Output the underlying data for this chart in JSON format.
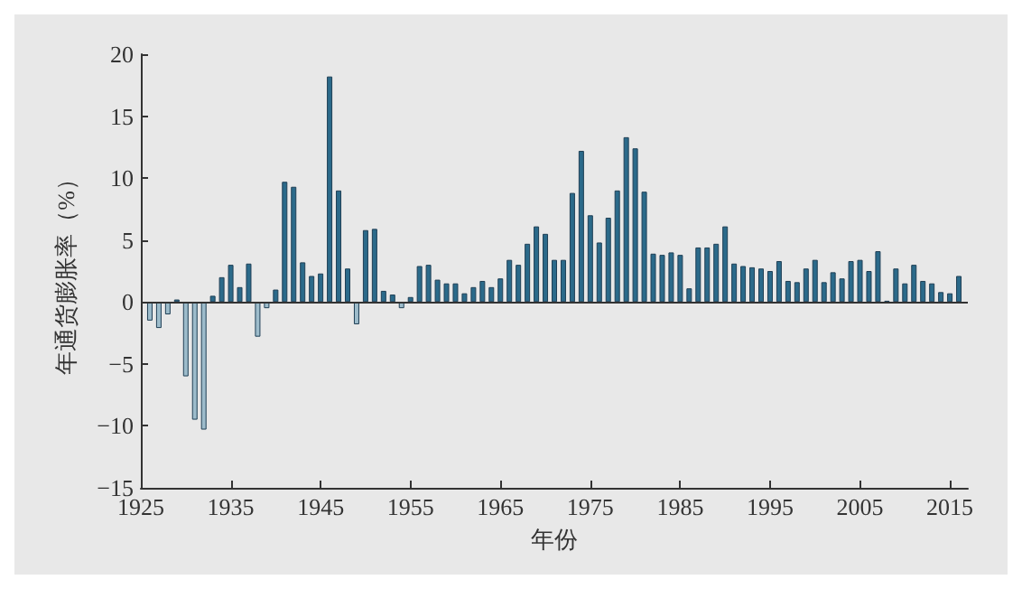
{
  "chart_data": {
    "type": "bar",
    "xlabel": "年份",
    "ylabel": "年通货膨胀率（%）",
    "x": [
      1926,
      1927,
      1928,
      1929,
      1930,
      1931,
      1932,
      1933,
      1934,
      1935,
      1936,
      1937,
      1938,
      1939,
      1940,
      1941,
      1942,
      1943,
      1944,
      1945,
      1946,
      1947,
      1948,
      1949,
      1950,
      1951,
      1952,
      1953,
      1954,
      1955,
      1956,
      1957,
      1958,
      1959,
      1960,
      1961,
      1962,
      1963,
      1964,
      1965,
      1966,
      1967,
      1968,
      1969,
      1970,
      1971,
      1972,
      1973,
      1974,
      1975,
      1976,
      1977,
      1978,
      1979,
      1980,
      1981,
      1982,
      1983,
      1984,
      1985,
      1986,
      1987,
      1988,
      1989,
      1990,
      1991,
      1992,
      1993,
      1994,
      1995,
      1996,
      1997,
      1998,
      1999,
      2000,
      2001,
      2002,
      2003,
      2004,
      2005,
      2006,
      2007,
      2008,
      2009,
      2010,
      2011,
      2012,
      2013,
      2014,
      2015,
      2016
    ],
    "values": [
      -1.5,
      -2.1,
      -1.0,
      0.2,
      -6.0,
      -9.5,
      -10.3,
      0.5,
      2.0,
      3.0,
      1.2,
      3.1,
      -2.8,
      -0.5,
      1.0,
      9.7,
      9.3,
      3.2,
      2.1,
      2.3,
      18.2,
      9.0,
      2.7,
      -1.8,
      5.8,
      5.9,
      0.9,
      0.6,
      -0.5,
      0.4,
      2.9,
      3.0,
      1.8,
      1.5,
      1.5,
      0.7,
      1.2,
      1.7,
      1.2,
      1.9,
      3.4,
      3.0,
      4.7,
      6.1,
      5.5,
      3.4,
      3.4,
      8.8,
      12.2,
      7.0,
      4.8,
      6.8,
      9.0,
      13.3,
      12.4,
      8.9,
      3.9,
      3.8,
      4.0,
      3.8,
      1.1,
      4.4,
      4.4,
      4.7,
      6.1,
      3.1,
      2.9,
      2.8,
      2.7,
      2.5,
      3.3,
      1.7,
      1.6,
      2.7,
      3.4,
      1.6,
      2.4,
      1.9,
      3.3,
      3.4,
      2.5,
      4.1,
      0.1,
      2.7,
      1.5,
      3.0,
      1.7,
      1.5,
      0.8,
      0.7,
      2.1
    ],
    "colors": [
      "#9dbccb",
      "#9dbccb",
      "#9dbccb",
      "#2b6a8a",
      "#9dbccb",
      "#9dbccb",
      "#9dbccb",
      "#2b6a8a",
      "#2b6a8a",
      "#2b6a8a",
      "#2b6a8a",
      "#2b6a8a",
      "#9dbccb",
      "#9dbccb",
      "#2b6a8a",
      "#2b6a8a",
      "#2b6a8a",
      "#2b6a8a",
      "#2b6a8a",
      "#2b6a8a",
      "#2b6a8a",
      "#2b6a8a",
      "#2b6a8a",
      "#9dbccb",
      "#2b6a8a",
      "#2b6a8a",
      "#2b6a8a",
      "#2b6a8a",
      "#9dbccb",
      "#2b6a8a",
      "#2b6a8a",
      "#2b6a8a",
      "#2b6a8a",
      "#2b6a8a",
      "#2b6a8a",
      "#2b6a8a",
      "#2b6a8a",
      "#2b6a8a",
      "#2b6a8a",
      "#2b6a8a",
      "#2b6a8a",
      "#2b6a8a",
      "#2b6a8a",
      "#2b6a8a",
      "#2b6a8a",
      "#2b6a8a",
      "#2b6a8a",
      "#2b6a8a",
      "#2b6a8a",
      "#2b6a8a",
      "#2b6a8a",
      "#2b6a8a",
      "#2b6a8a",
      "#2b6a8a",
      "#2b6a8a",
      "#2b6a8a",
      "#2b6a8a",
      "#2b6a8a",
      "#2b6a8a",
      "#2b6a8a",
      "#2b6a8a",
      "#2b6a8a",
      "#2b6a8a",
      "#2b6a8a",
      "#2b6a8a",
      "#2b6a8a",
      "#2b6a8a",
      "#2b6a8a",
      "#2b6a8a",
      "#2b6a8a",
      "#2b6a8a",
      "#2b6a8a",
      "#2b6a8a",
      "#2b6a8a",
      "#2b6a8a",
      "#2b6a8a",
      "#2b6a8a",
      "#2b6a8a",
      "#2b6a8a",
      "#2b6a8a",
      "#2b6a8a",
      "#2b6a8a",
      "#2b6a8a",
      "#2b6a8a",
      "#2b6a8a",
      "#2b6a8a",
      "#2b6a8a",
      "#2b6a8a",
      "#2b6a8a",
      "#2b6a8a",
      "#2b6a8a"
    ],
    "xlim": [
      1925,
      2017
    ],
    "xticks": [
      1925,
      1935,
      1945,
      1955,
      1965,
      1975,
      1985,
      1995,
      2005,
      2015
    ],
    "ylim": [
      -15,
      20
    ],
    "yticks": [
      -15,
      -10,
      -5,
      0,
      5,
      10,
      15,
      20
    ],
    "ref_lines": [
      {
        "axis": "y",
        "value": 0,
        "color": "#333333"
      }
    ]
  }
}
